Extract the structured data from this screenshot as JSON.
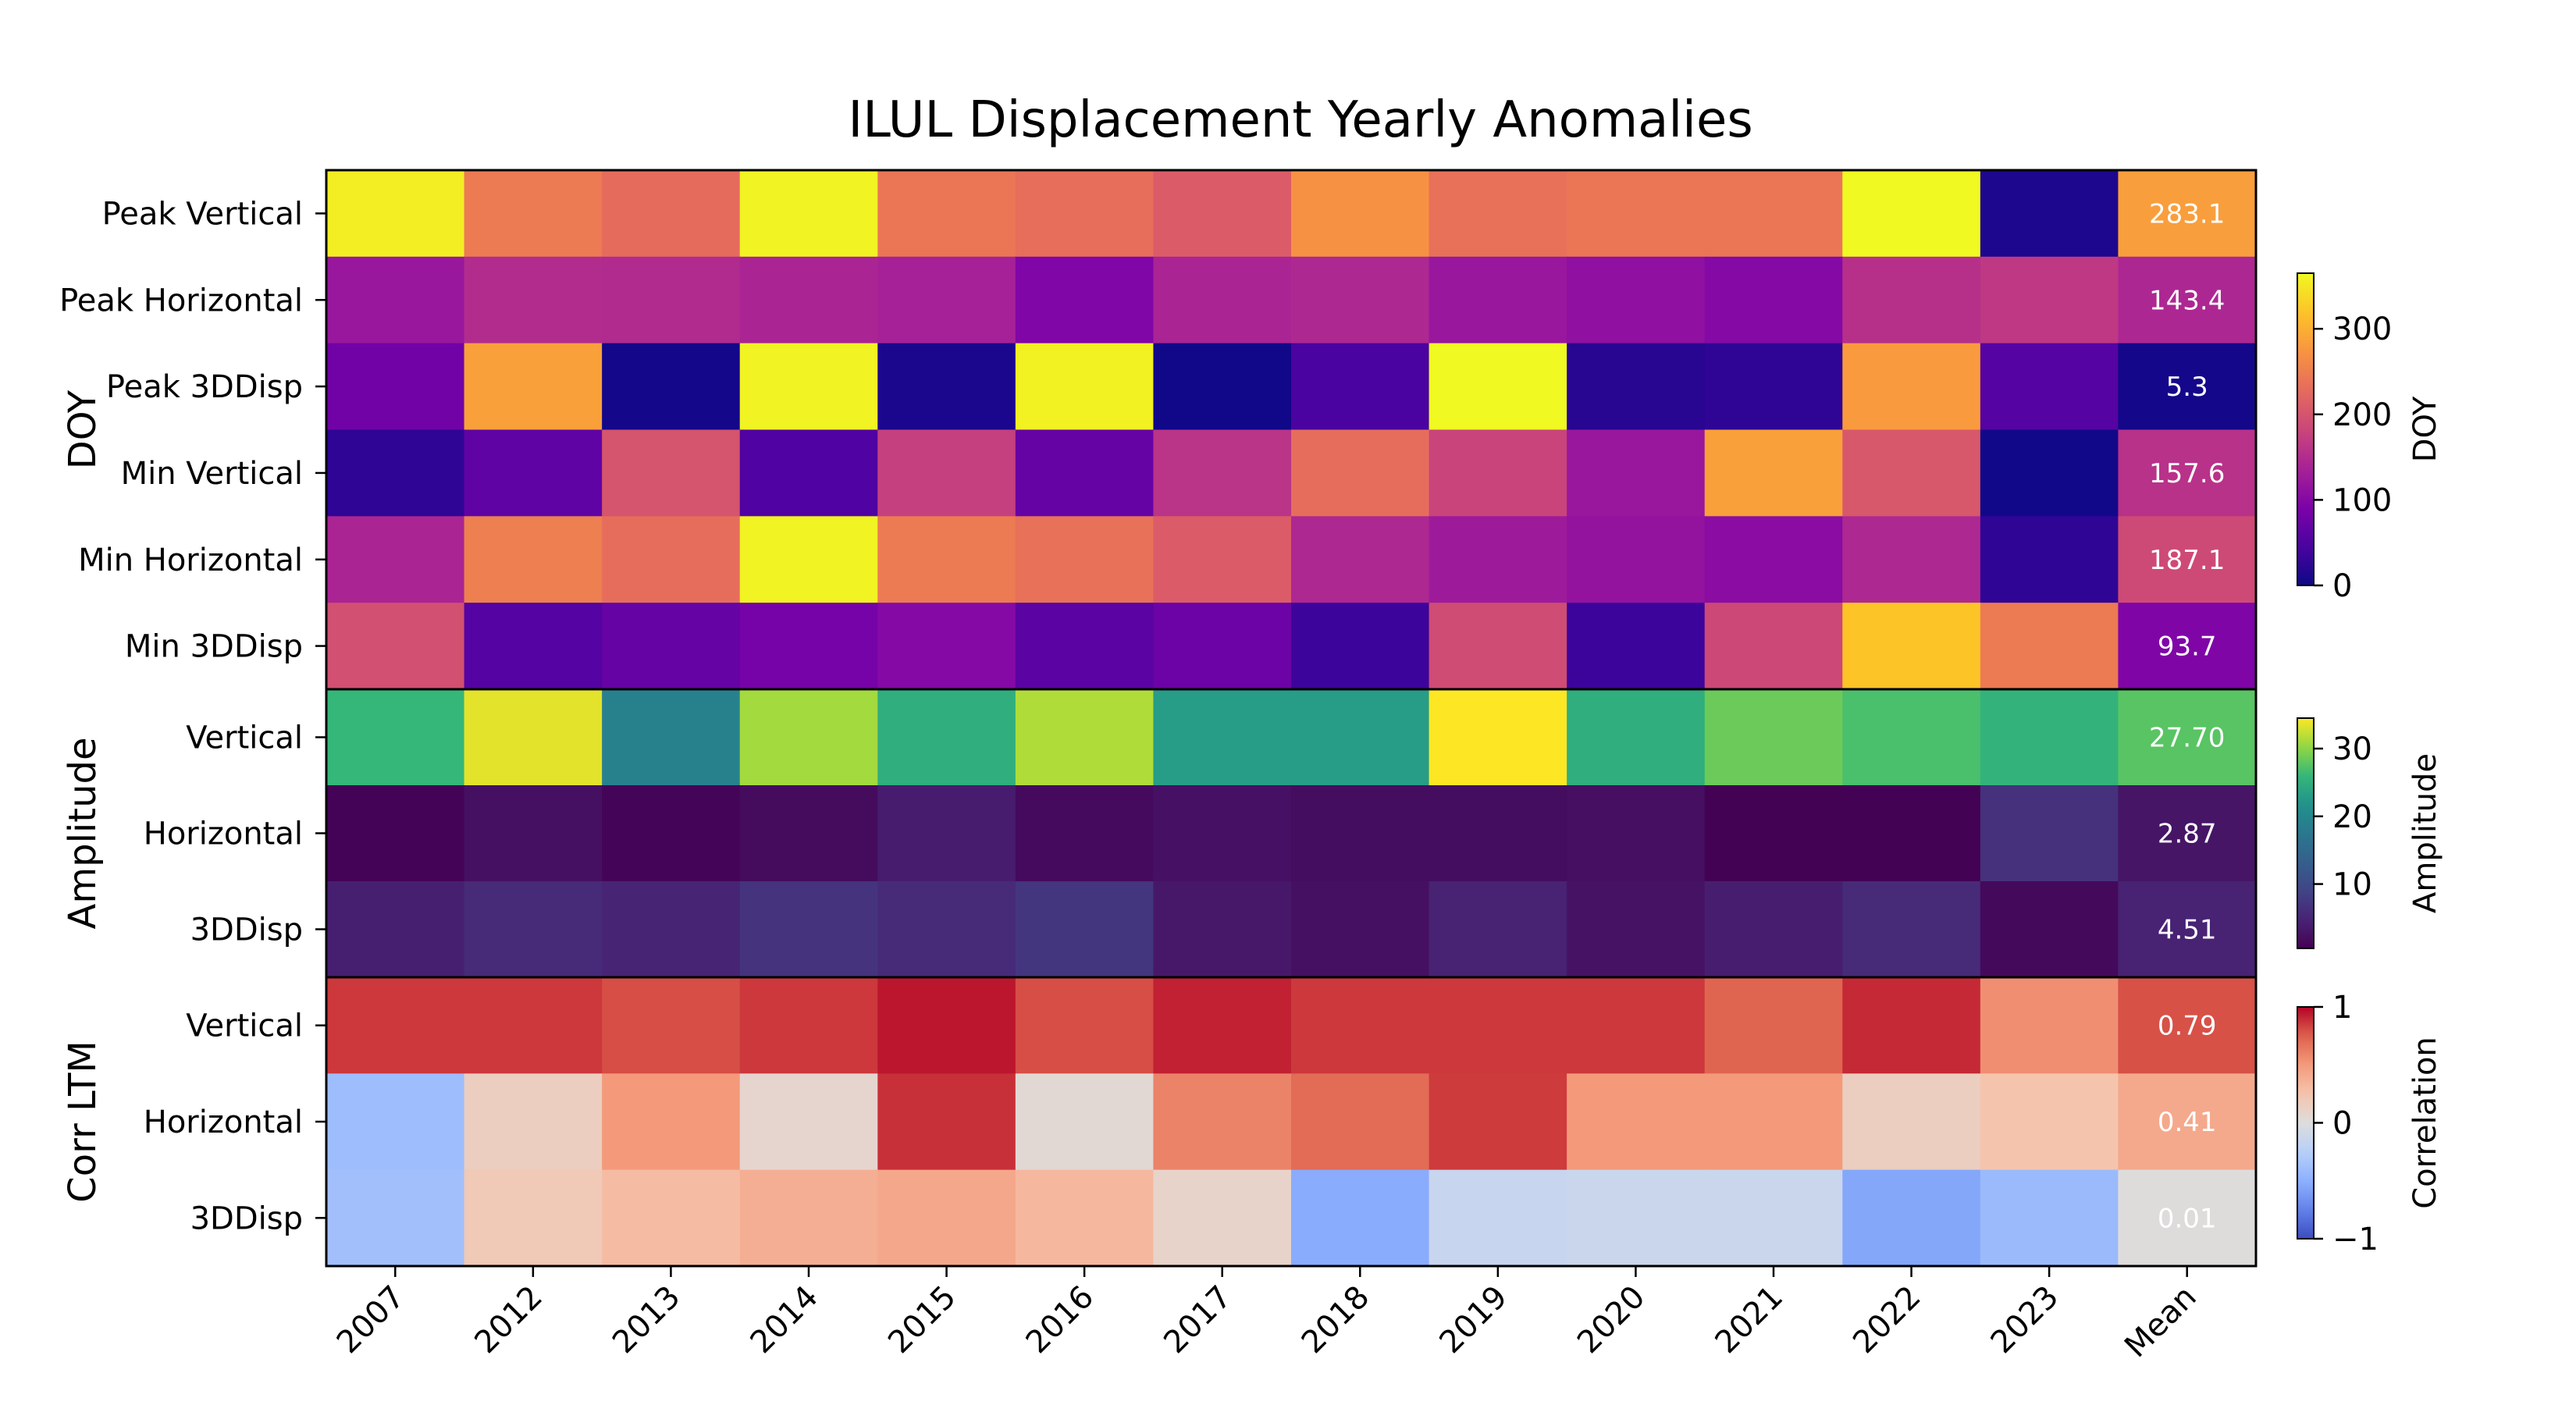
{
  "chart_data": {
    "type": "heatmap",
    "title": "ILUL Displacement Yearly Anomalies",
    "columns": [
      "2007",
      "2012",
      "2013",
      "2014",
      "2015",
      "2016",
      "2017",
      "2018",
      "2019",
      "2020",
      "2021",
      "2022",
      "2023",
      "Mean"
    ],
    "groups": [
      {
        "label": "DOY",
        "colorbar_label": "DOY",
        "colormap": "plasma",
        "range": [
          0,
          365
        ],
        "colorbar_ticks": [
          "0",
          "100",
          "200",
          "300"
        ],
        "rows": [
          {
            "label": "Peak Vertical",
            "values": [
              355,
              245,
              228,
              360,
              240,
              232,
              210,
              270,
              235,
              240,
              240,
              365,
              12,
              283.1
            ],
            "mean_text": "283.1"
          },
          {
            "label": "Peak Horizontal",
            "values": [
              120,
              150,
              148,
              140,
              135,
              95,
              140,
              145,
              120,
              110,
              100,
              155,
              165,
              143.4
            ],
            "mean_text": "143.4"
          },
          {
            "label": "Peak 3DDisp",
            "values": [
              80,
              285,
              5,
              360,
              10,
              358,
              2,
              45,
              365,
              20,
              25,
              280,
              55,
              5.3
            ],
            "mean_text": "5.3"
          },
          {
            "label": "Min Vertical",
            "values": [
              25,
              65,
              200,
              50,
              175,
              70,
              160,
              230,
              180,
              120,
              285,
              205,
              3,
              157.6
            ],
            "mean_text": "157.6"
          },
          {
            "label": "Min Horizontal",
            "values": [
              140,
              250,
              230,
              360,
              245,
              235,
              210,
              145,
              125,
              115,
              105,
              145,
              25,
              187.1
            ],
            "mean_text": "187.1"
          },
          {
            "label": "Min 3DDisp",
            "values": [
              195,
              55,
              70,
              85,
              100,
              60,
              75,
              35,
              190,
              35,
              185,
              320,
              245,
              93.7
            ],
            "mean_text": "93.7"
          }
        ]
      },
      {
        "label": "Amplitude",
        "colorbar_label": "Amplitude",
        "colormap": "viridis",
        "range": [
          0.5,
          34.5
        ],
        "colorbar_ticks": [
          "10",
          "20",
          "30"
        ],
        "rows": [
          {
            "label": "Vertical",
            "values": [
              26.0,
              33.5,
              19.0,
              31.0,
              25.0,
              31.5,
              23.0,
              23.0,
              34.5,
              25.0,
              28.5,
              27.0,
              25.5,
              27.7
            ],
            "mean_text": "27.70"
          },
          {
            "label": "Horizontal",
            "values": [
              0.8,
              2.3,
              1.0,
              1.8,
              3.8,
              1.6,
              2.5,
              2.0,
              2.0,
              2.2,
              0.6,
              0.6,
              6.5,
              2.87
            ],
            "mean_text": "2.87"
          },
          {
            "label": "3DDisp",
            "values": [
              4.2,
              5.5,
              4.8,
              6.8,
              5.5,
              7.0,
              3.3,
              2.3,
              4.5,
              2.6,
              4.0,
              5.5,
              1.5,
              4.51
            ],
            "mean_text": "4.51"
          }
        ]
      },
      {
        "label": "Corr LTM",
        "colorbar_label": "Correlation",
        "colormap": "coolwarm",
        "range": [
          -1,
          1
        ],
        "colorbar_ticks": [
          "−1",
          "0",
          "1"
        ],
        "rows": [
          {
            "label": "Vertical",
            "values": [
              0.86,
              0.86,
              0.8,
              0.86,
              0.95,
              0.8,
              0.92,
              0.86,
              0.86,
              0.86,
              0.73,
              0.9,
              0.55,
              0.79
            ],
            "mean_text": "0.79"
          },
          {
            "label": "Horizontal",
            "values": [
              -0.4,
              0.15,
              0.5,
              0.08,
              0.88,
              0.05,
              0.6,
              0.7,
              0.85,
              0.5,
              0.5,
              0.15,
              0.25,
              0.41
            ],
            "mean_text": "0.41"
          },
          {
            "label": "3DDisp",
            "values": [
              -0.38,
              0.2,
              0.3,
              0.38,
              0.42,
              0.32,
              0.1,
              -0.52,
              -0.15,
              -0.13,
              -0.13,
              -0.55,
              -0.42,
              0.01
            ],
            "mean_text": "0.01"
          }
        ]
      }
    ]
  }
}
